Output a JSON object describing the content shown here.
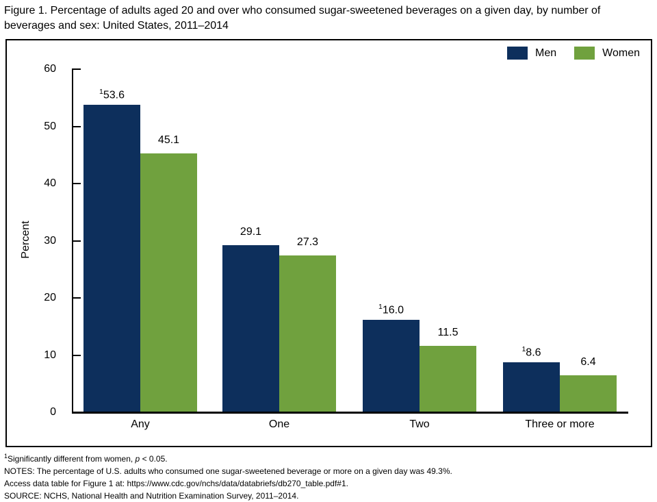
{
  "title": "Figure 1. Percentage of adults aged 20 and over who consumed sugar-sweetened beverages on a given day, by number of beverages and sex: United States, 2011–2014",
  "chart_data": {
    "type": "bar",
    "categories": [
      "Any",
      "One",
      "Two",
      "Three or more"
    ],
    "series": [
      {
        "name": "Men",
        "color": "#0D2F5C",
        "values": [
          53.6,
          29.1,
          16.0,
          8.6
        ],
        "labels": [
          "53.6",
          "29.1",
          "16.0",
          "8.6"
        ],
        "sig_superscript": [
          true,
          false,
          true,
          true
        ]
      },
      {
        "name": "Women",
        "color": "#70A13E",
        "values": [
          45.1,
          27.3,
          11.5,
          6.4
        ],
        "labels": [
          "45.1",
          "27.3",
          "11.5",
          "6.4"
        ],
        "sig_superscript": [
          false,
          false,
          false,
          false
        ]
      }
    ],
    "sig_marker": "1",
    "title": "",
    "xlabel": "",
    "ylabel": "Percent",
    "ylim": [
      0,
      60
    ],
    "yticks": [
      0,
      10,
      20,
      30,
      40,
      50,
      60
    ],
    "legend_position": "top-right",
    "grid": false
  },
  "footnotes": {
    "sig_sup": "1",
    "sig_prefix": "Significantly different from women, ",
    "sig_p": "p",
    "sig_suffix": " < 0.05.",
    "notes": "NOTES: The percentage of U.S. adults who consumed one sugar-sweetened beverage or more on a given day was 49.3%.",
    "access_prefix": "Access data table for Figure 1 at: ",
    "access_url": "https://www.cdc.gov/nchs/data/databriefs/db270_table.pdf#1",
    "access_suffix": ".",
    "source": "SOURCE: NCHS, National Health and Nutrition Examination Survey, 2011–2014."
  }
}
